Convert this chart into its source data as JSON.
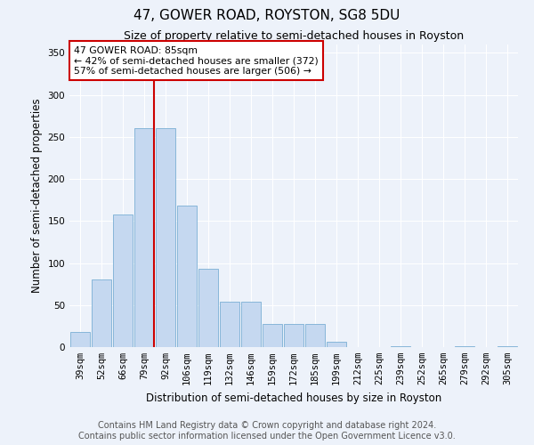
{
  "title": "47, GOWER ROAD, ROYSTON, SG8 5DU",
  "subtitle": "Size of property relative to semi-detached houses in Royston",
  "xlabel": "Distribution of semi-detached houses by size in Royston",
  "ylabel": "Number of semi-detached properties",
  "categories": [
    "39sqm",
    "52sqm",
    "66sqm",
    "79sqm",
    "92sqm",
    "106sqm",
    "119sqm",
    "132sqm",
    "146sqm",
    "159sqm",
    "172sqm",
    "185sqm",
    "199sqm",
    "212sqm",
    "225sqm",
    "239sqm",
    "252sqm",
    "265sqm",
    "279sqm",
    "292sqm",
    "305sqm"
  ],
  "values": [
    18,
    80,
    158,
    260,
    260,
    168,
    93,
    54,
    54,
    28,
    28,
    28,
    6,
    0,
    0,
    1,
    0,
    0,
    1,
    0,
    1
  ],
  "bar_color": "#c5d8f0",
  "bar_edge_color": "#7aafd4",
  "property_sqm": "85sqm",
  "pct_smaller": 42,
  "n_smaller": 372,
  "pct_larger": 57,
  "n_larger": 506,
  "annotation_box_color": "#cc0000",
  "property_line_x": 3.46,
  "ylim": [
    0,
    360
  ],
  "yticks": [
    0,
    50,
    100,
    150,
    200,
    250,
    300,
    350
  ],
  "footer_line1": "Contains HM Land Registry data © Crown copyright and database right 2024.",
  "footer_line2": "Contains public sector information licensed under the Open Government Licence v3.0.",
  "background_color": "#edf2fa",
  "grid_color": "#ffffff",
  "title_fontsize": 11,
  "subtitle_fontsize": 9,
  "axis_label_fontsize": 8.5,
  "tick_fontsize": 7.5,
  "footer_fontsize": 7
}
